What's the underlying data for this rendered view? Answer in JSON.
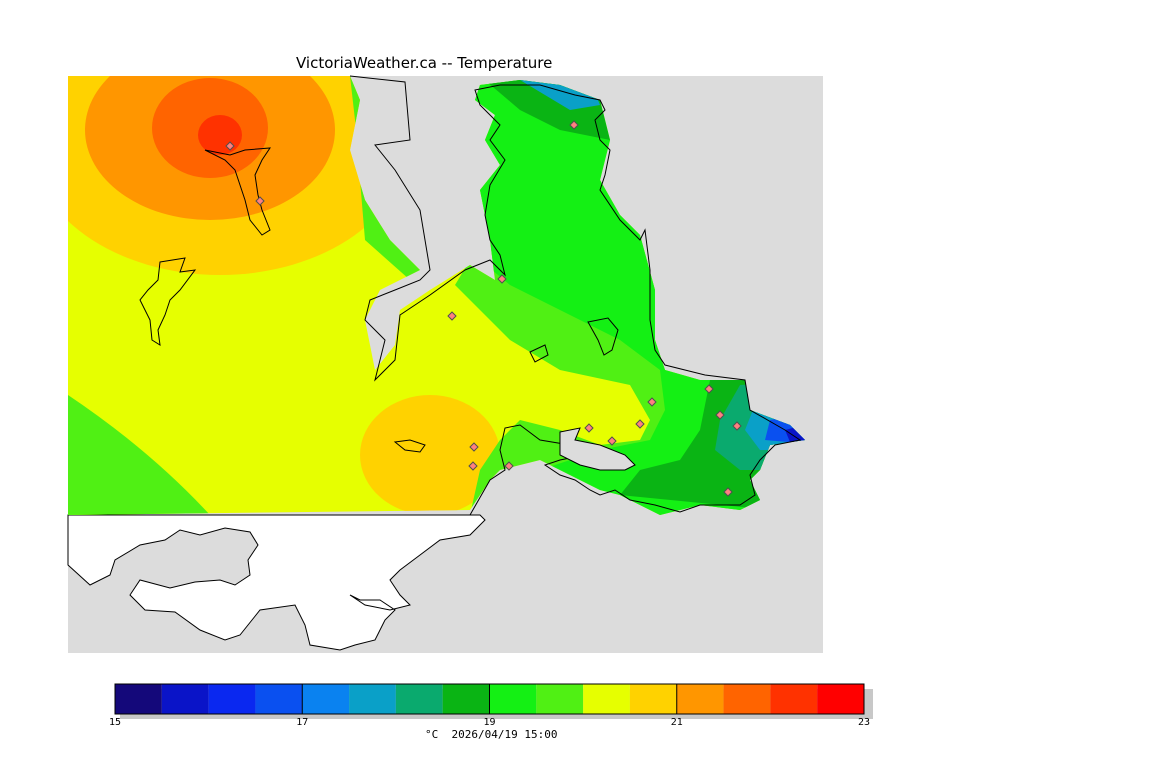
{
  "map": {
    "title": "VictoriaWeather.ca -- Temperature",
    "colors": {
      "ocean": "#dcdcdc",
      "land_outside": "#ffffff",
      "coast": "#000000"
    },
    "temperature_scale": {
      "min": 15,
      "max": 23,
      "step": 0.5,
      "bands": [
        "#14087a",
        "#0a14c8",
        "#0a28f0",
        "#0a50f0",
        "#0a82f0",
        "#0aa0c8",
        "#0aaa6e",
        "#0ab414",
        "#14f014",
        "#50f014",
        "#e6ff00",
        "#ffd200",
        "#ff9600",
        "#ff6400",
        "#ff3200",
        "#ff0000"
      ],
      "tick_labels": [
        "15",
        "17",
        "19",
        "21",
        "23"
      ],
      "unit_label": "°C  2026/04/19 15:00"
    },
    "stations_icon": "diamond-marker"
  }
}
